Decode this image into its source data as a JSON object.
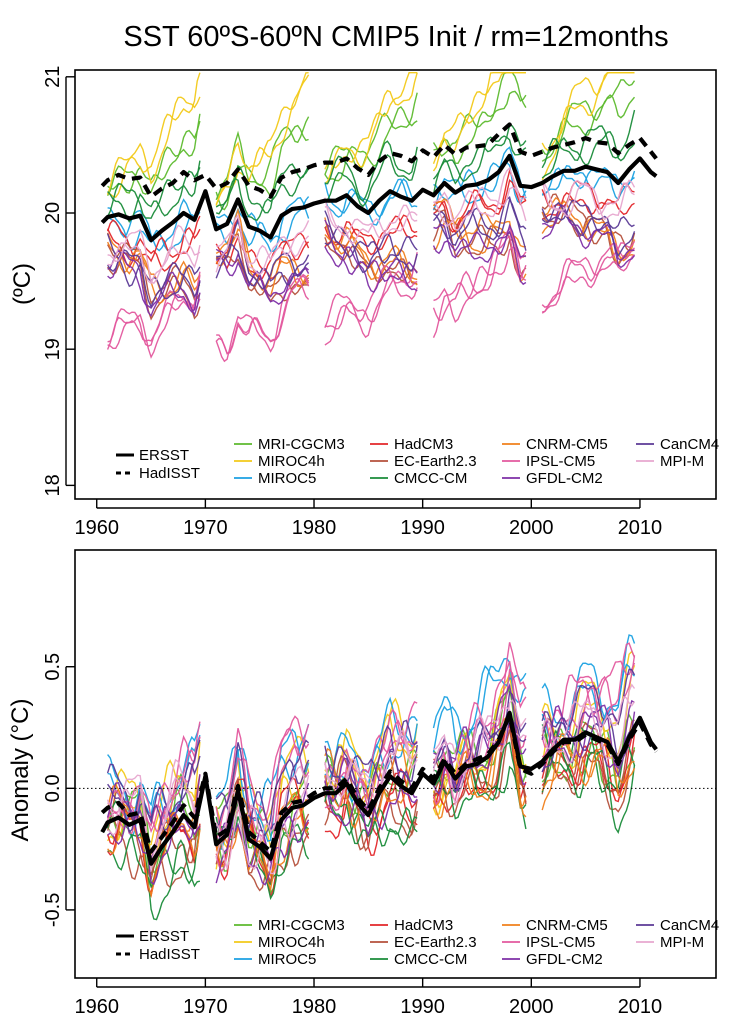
{
  "title": "SST 60ºS-60ºN  CMIP5 Init  / rm=12months",
  "chart_data": [
    {
      "type": "line",
      "ylabel": "(ºC)",
      "xlabel": "",
      "xlim": [
        1958,
        2017
      ],
      "ylim": [
        17.9,
        21.05
      ],
      "xticks": [
        "1960",
        "1970",
        "1980",
        "1990",
        "2000",
        "2010"
      ],
      "yticks": [
        "18",
        "19",
        "20",
        "21"
      ],
      "legend_placement": "bottom",
      "observations": [
        {
          "name": "ERSST",
          "style": "solid",
          "x": [
            1960.5,
            1961,
            1962,
            1963,
            1964,
            1965,
            1966,
            1967,
            1968,
            1969,
            1970,
            1971,
            1972,
            1973,
            1974,
            1975,
            1976,
            1977,
            1978,
            1979,
            1980,
            1981,
            1982,
            1983,
            1984,
            1985,
            1986,
            1987,
            1988,
            1989,
            1990,
            1991,
            1992,
            1993,
            1994,
            1995,
            1996,
            1997,
            1998,
            1999,
            2000,
            2001,
            2002,
            2003,
            2004,
            2005,
            2006,
            2007,
            2008,
            2009,
            2010,
            2011,
            2011.5
          ],
          "values": [
            19.93,
            19.97,
            19.99,
            19.96,
            19.98,
            19.8,
            19.87,
            19.93,
            20.0,
            19.95,
            20.16,
            19.88,
            19.92,
            20.1,
            19.9,
            19.87,
            19.82,
            19.98,
            20.03,
            20.04,
            20.07,
            20.09,
            20.09,
            20.13,
            20.05,
            20.0,
            20.09,
            20.16,
            20.12,
            20.09,
            20.17,
            20.13,
            20.22,
            20.15,
            20.2,
            20.21,
            20.24,
            20.3,
            20.42,
            20.2,
            20.19,
            20.22,
            20.27,
            20.31,
            20.31,
            20.34,
            20.32,
            20.3,
            20.22,
            20.32,
            20.4,
            20.3,
            20.27
          ]
        },
        {
          "name": "HadISST",
          "style": "dashed",
          "x": [
            1960.5,
            1961,
            1962,
            1963,
            1964,
            1965,
            1966,
            1967,
            1968,
            1969,
            1970,
            1971,
            1972,
            1973,
            1974,
            1975,
            1976,
            1977,
            1978,
            1979,
            1980,
            1981,
            1982,
            1983,
            1984,
            1985,
            1986,
            1987,
            1988,
            1989,
            1990,
            1991,
            1992,
            1993,
            1994,
            1995,
            1996,
            1997,
            1998,
            1999,
            2000,
            2001,
            2002,
            2003,
            2004,
            2005,
            2006,
            2007,
            2008,
            2009,
            2010,
            2011,
            2011.5
          ],
          "values": [
            20.2,
            20.24,
            20.28,
            20.25,
            20.26,
            20.12,
            20.18,
            20.22,
            20.3,
            20.24,
            20.28,
            20.18,
            20.22,
            20.32,
            20.2,
            20.17,
            20.12,
            20.26,
            20.3,
            20.32,
            20.35,
            20.37,
            20.37,
            20.4,
            20.33,
            20.28,
            20.38,
            20.44,
            20.42,
            20.38,
            20.46,
            20.41,
            20.5,
            20.43,
            20.48,
            20.49,
            20.5,
            20.58,
            20.65,
            20.45,
            20.42,
            20.45,
            20.48,
            20.5,
            20.52,
            20.55,
            20.52,
            20.51,
            20.44,
            20.5,
            20.55,
            20.45,
            20.4
          ]
        }
      ],
      "ensemble_members": [
        {
          "name": "MRI-CGCM3",
          "color": "#5dba2e",
          "offset": 0.2,
          "drift": 0.05
        },
        {
          "name": "MIROC4h",
          "color": "#f2c919",
          "offset": 0.18,
          "drift": 0.09
        },
        {
          "name": "MIROC5",
          "color": "#1ba1e2",
          "offset": -0.05,
          "drift": 0.0
        },
        {
          "name": "HadCM3",
          "color": "#e3262a",
          "offset": -0.2,
          "drift": 0.0
        },
        {
          "name": "EC-Earth2.3",
          "color": "#b5513c",
          "offset": -0.25,
          "drift": -0.04
        },
        {
          "name": "CMCC-CM",
          "color": "#1a8c3a",
          "offset": 0.12,
          "drift": 0.02
        },
        {
          "name": "CNRM-CM5",
          "color": "#f0801c",
          "offset": -0.2,
          "drift": -0.04
        },
        {
          "name": "IPSL-CM5",
          "color": "#e3589e",
          "offset": -0.9,
          "drift": 0.04
        },
        {
          "name": "GFDL-CM2",
          "color": "#7e2fa6",
          "offset": -0.35,
          "drift": -0.03
        },
        {
          "name": "CanCM4",
          "color": "#5b3a96",
          "offset": -0.28,
          "drift": -0.02
        },
        {
          "name": "MPI-M",
          "color": "#e7a7cf",
          "offset": -0.22,
          "drift": 0.0
        }
      ],
      "forecast_periods": [
        [
          1961,
          1969.5
        ],
        [
          1971,
          1979.5
        ],
        [
          1981,
          1989.5
        ],
        [
          1991,
          1999.5
        ],
        [
          2001,
          2009.5
        ]
      ]
    },
    {
      "type": "line",
      "ylabel": "Anomaly (°C)",
      "xlabel": "",
      "xlim": [
        1958,
        2017
      ],
      "ylim": [
        -0.78,
        0.98
      ],
      "xticks": [
        "1960",
        "1970",
        "1980",
        "1990",
        "2000",
        "2010"
      ],
      "yticks": [
        "-0.5",
        "0.0",
        "0.5"
      ],
      "reference_line": 0.0,
      "legend_placement": "bottom",
      "observations": [
        {
          "name": "ERSST",
          "style": "solid",
          "x": [
            1960.5,
            1961,
            1962,
            1963,
            1964,
            1965,
            1966,
            1967,
            1968,
            1969,
            1970,
            1971,
            1972,
            1973,
            1974,
            1975,
            1976,
            1977,
            1978,
            1979,
            1980,
            1981,
            1982,
            1983,
            1984,
            1985,
            1986,
            1987,
            1988,
            1989,
            1990,
            1991,
            1992,
            1993,
            1994,
            1995,
            1996,
            1997,
            1998,
            1999,
            2000,
            2001,
            2002,
            2003,
            2004,
            2005,
            2006,
            2007,
            2008,
            2009,
            2010,
            2011,
            2011.5
          ],
          "values": [
            -0.18,
            -0.14,
            -0.12,
            -0.15,
            -0.13,
            -0.31,
            -0.24,
            -0.18,
            -0.11,
            -0.16,
            0.05,
            -0.23,
            -0.19,
            -0.01,
            -0.21,
            -0.24,
            -0.29,
            -0.13,
            -0.08,
            -0.07,
            -0.04,
            -0.02,
            -0.02,
            0.02,
            -0.06,
            -0.11,
            -0.02,
            0.05,
            0.01,
            -0.02,
            0.06,
            0.02,
            0.11,
            0.04,
            0.09,
            0.1,
            0.13,
            0.19,
            0.31,
            0.09,
            0.08,
            0.11,
            0.16,
            0.2,
            0.2,
            0.23,
            0.21,
            0.19,
            0.11,
            0.21,
            0.29,
            0.19,
            0.16
          ]
        },
        {
          "name": "HadISST",
          "style": "dashed",
          "x": [
            1960.5,
            1961,
            1962,
            1963,
            1964,
            1965,
            1966,
            1967,
            1968,
            1969,
            1970,
            1971,
            1972,
            1973,
            1974,
            1975,
            1976,
            1977,
            1978,
            1979,
            1980,
            1981,
            1982,
            1983,
            1984,
            1985,
            1986,
            1987,
            1988,
            1989,
            1990,
            1991,
            1992,
            1993,
            1994,
            1995,
            1996,
            1997,
            1998,
            1999,
            2000,
            2001,
            2002,
            2003,
            2004,
            2005,
            2006,
            2007,
            2008,
            2009,
            2010,
            2011,
            2011.5
          ],
          "values": [
            -0.1,
            -0.08,
            -0.06,
            -0.11,
            -0.1,
            -0.26,
            -0.2,
            -0.14,
            -0.07,
            -0.12,
            0.06,
            -0.2,
            -0.17,
            0.01,
            -0.18,
            -0.22,
            -0.26,
            -0.1,
            -0.06,
            -0.05,
            -0.02,
            0.0,
            0.0,
            0.04,
            -0.04,
            -0.09,
            0.0,
            0.07,
            0.03,
            0.0,
            0.08,
            0.04,
            0.12,
            0.06,
            0.1,
            0.12,
            0.14,
            0.2,
            0.3,
            0.08,
            0.06,
            0.1,
            0.15,
            0.19,
            0.19,
            0.22,
            0.2,
            0.18,
            0.1,
            0.2,
            0.27,
            0.18,
            0.15
          ]
        }
      ],
      "ensemble_members": [
        {
          "name": "MRI-CGCM3",
          "color": "#5dba2e",
          "offset": 0.0,
          "drift": 0.0
        },
        {
          "name": "MIROC4h",
          "color": "#f2c919",
          "offset": 0.02,
          "drift": 0.02
        },
        {
          "name": "MIROC5",
          "color": "#1ba1e2",
          "offset": 0.08,
          "drift": 0.02
        },
        {
          "name": "HadCM3",
          "color": "#e3262a",
          "offset": -0.04,
          "drift": 0.0
        },
        {
          "name": "EC-Earth2.3",
          "color": "#b5513c",
          "offset": -0.05,
          "drift": -0.01
        },
        {
          "name": "CMCC-CM",
          "color": "#1a8c3a",
          "offset": -0.03,
          "drift": -0.02
        },
        {
          "name": "CNRM-CM5",
          "color": "#f0801c",
          "offset": -0.02,
          "drift": 0.0
        },
        {
          "name": "IPSL-CM5",
          "color": "#e3589e",
          "offset": 0.02,
          "drift": 0.03
        },
        {
          "name": "GFDL-CM2",
          "color": "#7e2fa6",
          "offset": -0.01,
          "drift": 0.0
        },
        {
          "name": "CanCM4",
          "color": "#5b3a96",
          "offset": 0.04,
          "drift": 0.01
        },
        {
          "name": "MPI-M",
          "color": "#e7a7cf",
          "offset": 0.0,
          "drift": 0.01
        }
      ],
      "forecast_periods": [
        [
          1961,
          1969.5
        ],
        [
          1971,
          1979.5
        ],
        [
          1981,
          1989.5
        ],
        [
          1991,
          1999.5
        ],
        [
          2001,
          2009.5
        ]
      ]
    }
  ]
}
